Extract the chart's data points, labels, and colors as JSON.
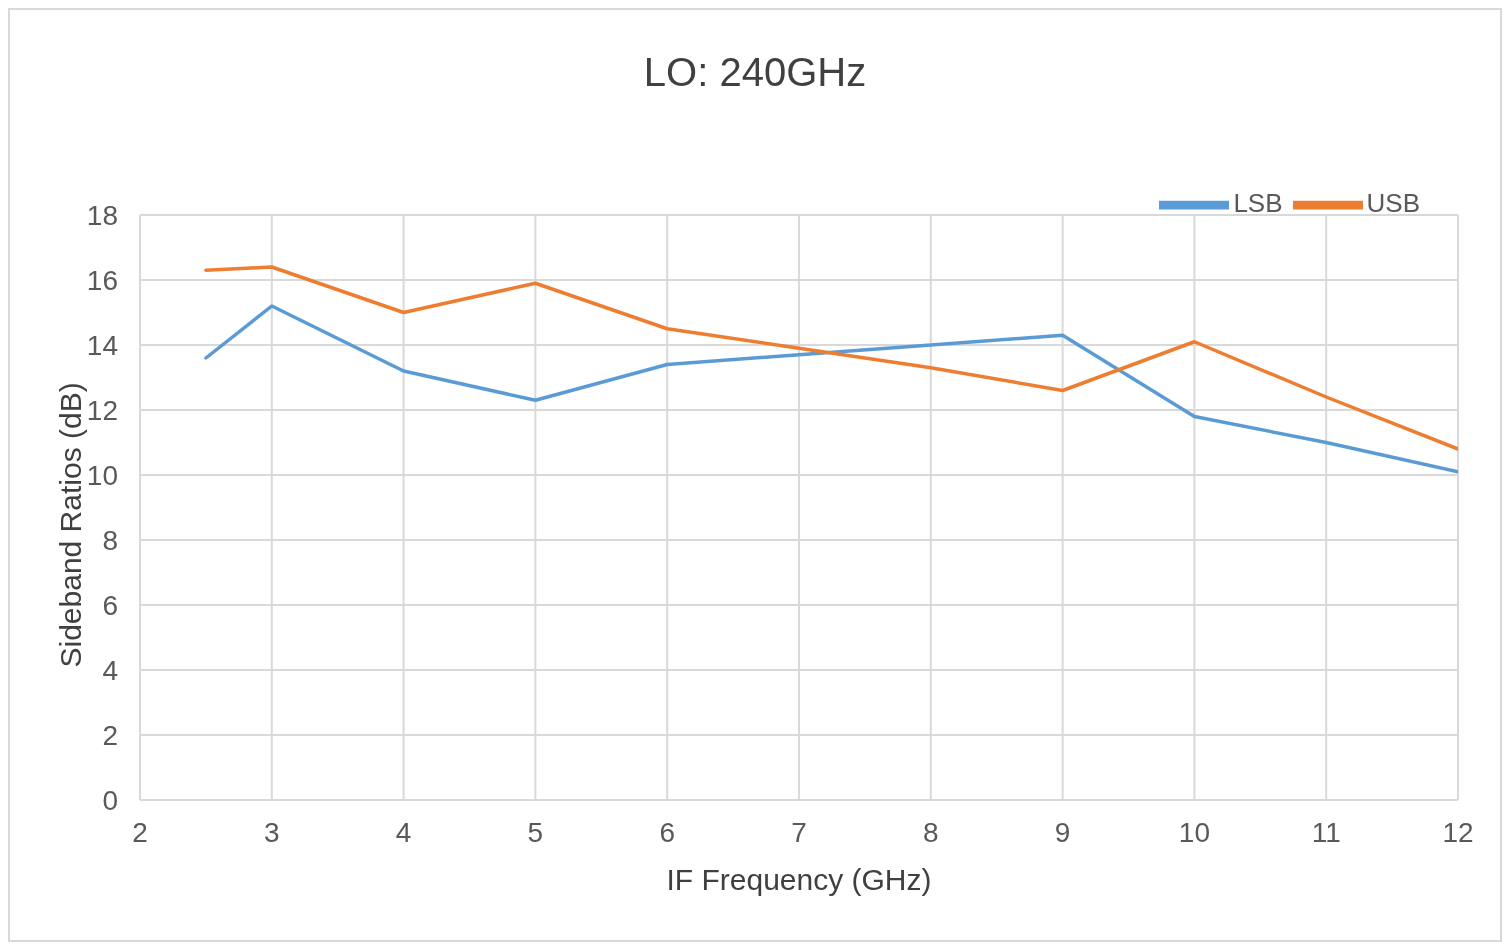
{
  "chart_data": {
    "type": "line",
    "title": "LO: 240GHz",
    "xlabel": "IF Frequency (GHz)",
    "ylabel": "Sideband Ratios (dB)",
    "x": [
      2.5,
      3,
      4,
      5,
      6,
      7,
      8,
      9,
      10,
      11,
      12
    ],
    "series": [
      {
        "name": "LSB",
        "color": "#5b9bd5",
        "values": [
          13.6,
          15.2,
          13.2,
          12.3,
          13.4,
          13.7,
          14.0,
          14.3,
          11.8,
          11.0,
          10.1
        ]
      },
      {
        "name": "USB",
        "color": "#ed7d31",
        "values": [
          16.3,
          16.4,
          15.0,
          15.9,
          14.5,
          13.9,
          13.3,
          12.6,
          14.1,
          12.4,
          10.8
        ]
      }
    ],
    "xlim": [
      2,
      12
    ],
    "xticks": [
      2,
      3,
      4,
      5,
      6,
      7,
      8,
      9,
      10,
      11,
      12
    ],
    "ylim": [
      0,
      18
    ],
    "yticks": [
      0,
      2,
      4,
      6,
      8,
      10,
      12,
      14,
      16,
      18
    ],
    "grid": true,
    "legend": "top right",
    "marker": "none",
    "line_style": "solid"
  }
}
